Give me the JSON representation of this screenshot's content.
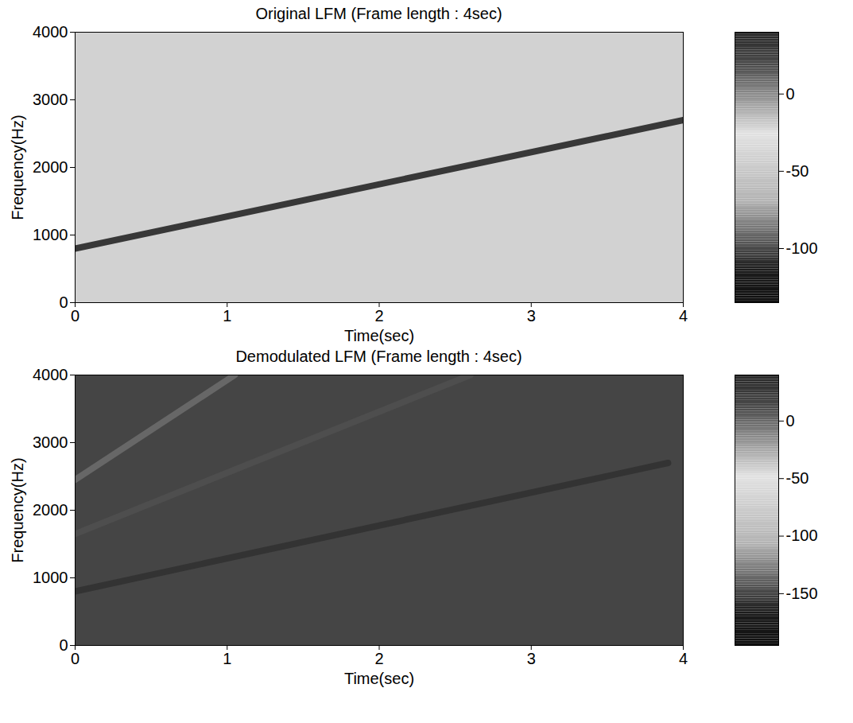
{
  "chart_data": [
    {
      "type": "spectrogram",
      "title": "Original LFM (Frame length : 4sec)",
      "x_label": "Time(sec)",
      "y_label": "Frequency(Hz)",
      "xlim": [
        0,
        4
      ],
      "xticks": [
        0,
        1,
        2,
        3,
        4
      ],
      "ylim": [
        0,
        4000
      ],
      "yticks": [
        0,
        1000,
        2000,
        3000,
        4000
      ],
      "noise_level": -40,
      "series": [
        {
          "x": [
            0,
            4
          ],
          "values": [
            800,
            2700
          ],
          "level": 30
        }
      ],
      "colorbar": {
        "range": [
          -135,
          40
        ],
        "ticks": [
          0,
          -50,
          -100
        ]
      }
    },
    {
      "type": "spectrogram",
      "title": "Demodulated LFM (Frame length : 4sec)",
      "x_label": "Time(sec)",
      "y_label": "Frequency(Hz)",
      "xlim": [
        0,
        4
      ],
      "xticks": [
        0,
        1,
        2,
        3,
        4
      ],
      "ylim": [
        0,
        4000
      ],
      "yticks": [
        0,
        1000,
        2000,
        3000,
        4000
      ],
      "noise_level": -150,
      "series": [
        {
          "x": [
            0,
            3.9
          ],
          "values": [
            800,
            2700
          ],
          "level": 30
        },
        {
          "x": [
            0,
            2.6
          ],
          "values": [
            1650,
            4000
          ],
          "level": 10
        },
        {
          "x": [
            0,
            1.05
          ],
          "values": [
            2450,
            4000
          ],
          "level": 0
        }
      ],
      "colorbar": {
        "range": [
          -195,
          40
        ],
        "ticks": [
          0,
          -50,
          -100,
          -150
        ]
      }
    }
  ]
}
